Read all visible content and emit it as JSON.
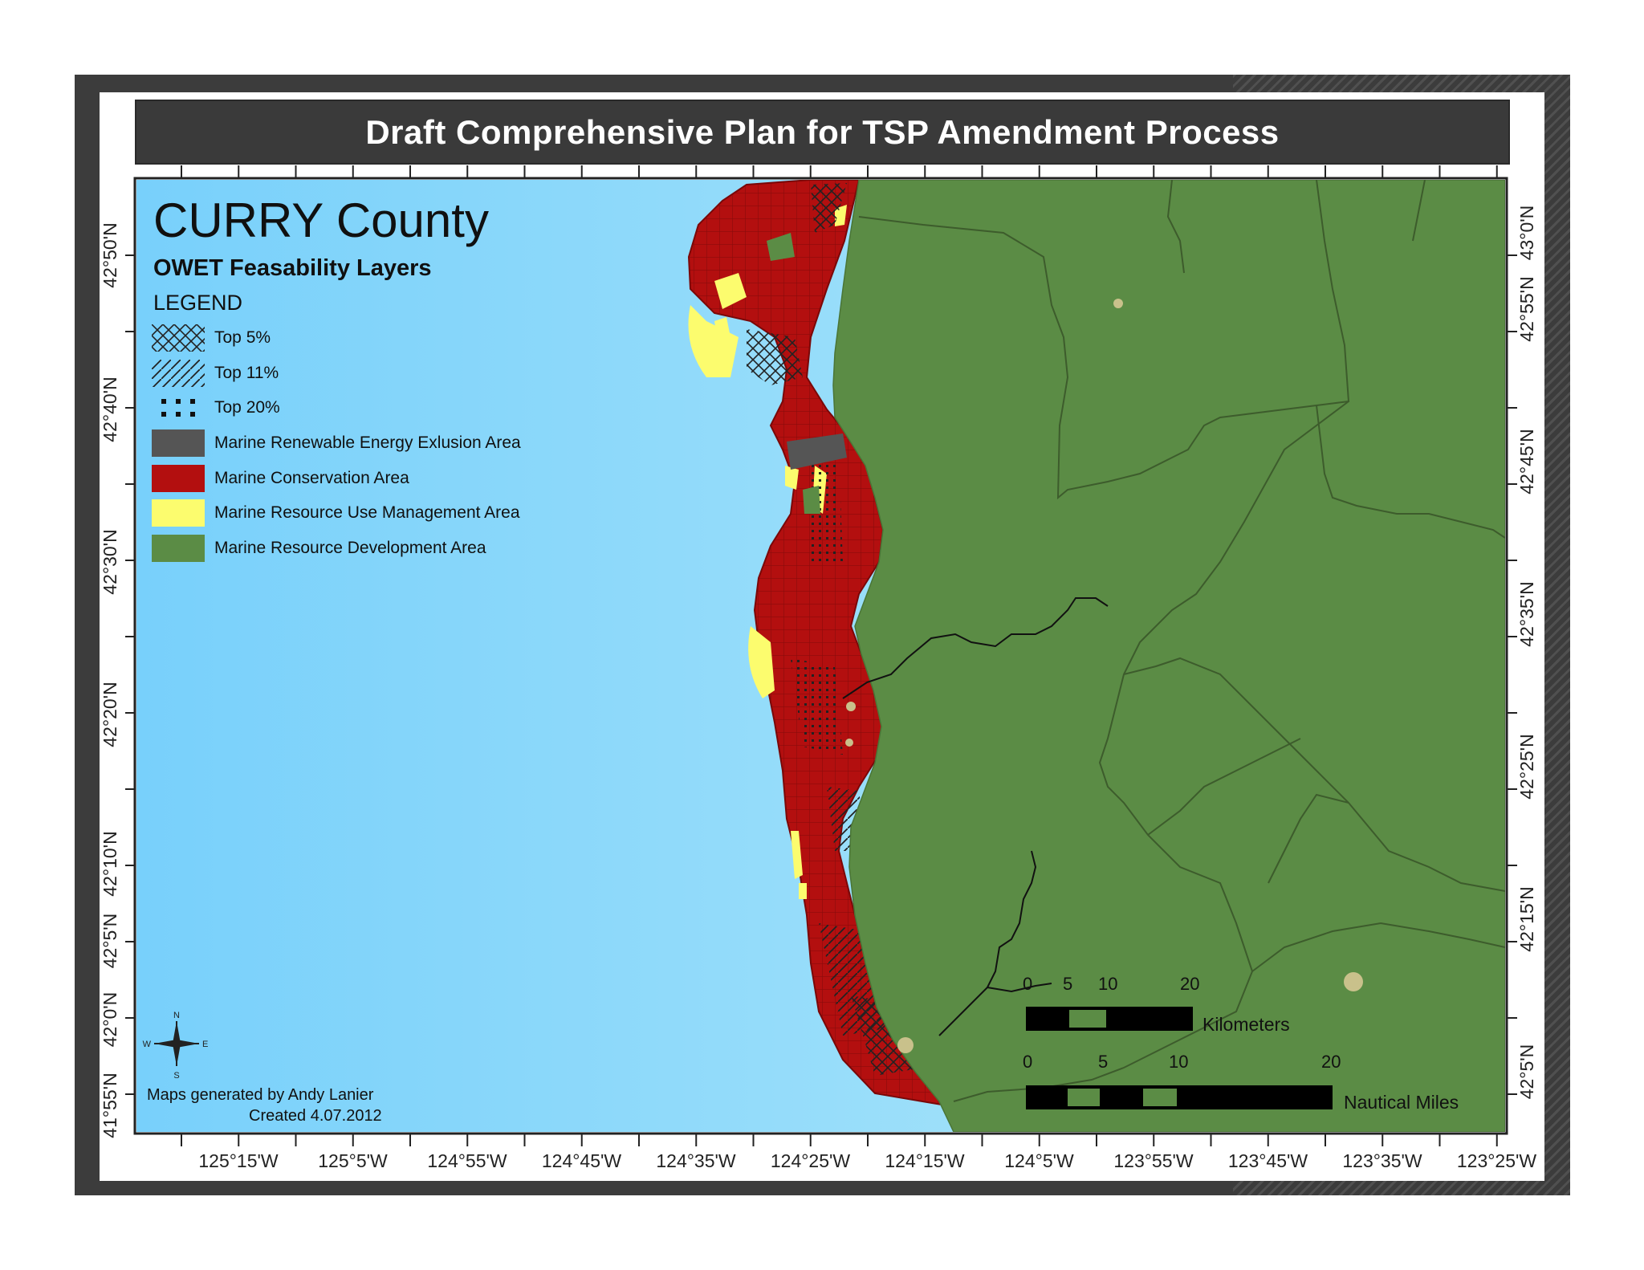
{
  "title": "Draft Comprehensive Plan for TSP Amendment Process",
  "map": {
    "county_title": "CURRY County",
    "layers_title": "OWET Feasability Layers",
    "legend_title": "LEGEND",
    "legend": [
      {
        "label": "Top 5%",
        "symbol": "crosshatch"
      },
      {
        "label": "Top 11%",
        "symbol": "diagonal-hatch"
      },
      {
        "label": "Top 20%",
        "symbol": "dots"
      },
      {
        "label": "Marine Renewable Energy Exlusion Area",
        "color": "#555555"
      },
      {
        "label": "Marine Conservation Area",
        "color": "#b30f0f"
      },
      {
        "label": "Marine Resource Use Management Area",
        "color": "#fcfc6e"
      },
      {
        "label": "Marine Resource Development Area",
        "color": "#5b8c45"
      }
    ],
    "credit": {
      "line1": "Maps generated by Andy Lanier",
      "line2": "Created 4.07.2012"
    },
    "north_arrow": {
      "n": "N",
      "s": "S",
      "e": "E",
      "w": "W"
    },
    "scale_bars": [
      {
        "unit": "Kilometers",
        "ticks": [
          "0",
          "5",
          "10",
          "20"
        ]
      },
      {
        "unit": "Nautical Miles",
        "ticks": [
          "0",
          "5",
          "10",
          "20"
        ]
      }
    ],
    "lon_labels": [
      "125°15'W",
      "125°5'W",
      "124°55'W",
      "124°45'W",
      "124°35'W",
      "124°25'W",
      "124°15'W",
      "124°5'W",
      "123°55'W",
      "123°45'W",
      "123°35'W",
      "123°25'W"
    ],
    "lat_labels_left": [
      "41°55'N",
      "42°0'N",
      "42°5'N",
      "42°10'N",
      "42°20'N",
      "42°30'N",
      "42°40'N",
      "42°50'N"
    ],
    "lat_labels_right": [
      "42°5'N",
      "42°15'N",
      "42°25'N",
      "42°35'N",
      "42°45'N",
      "42°55'N",
      "43°0'N"
    ],
    "colors": {
      "ocean": "#8fdcfa",
      "land": "#5b8c45",
      "conservation": "#b30f0f",
      "use_management": "#fcfc6e",
      "exclusion": "#555555"
    }
  }
}
